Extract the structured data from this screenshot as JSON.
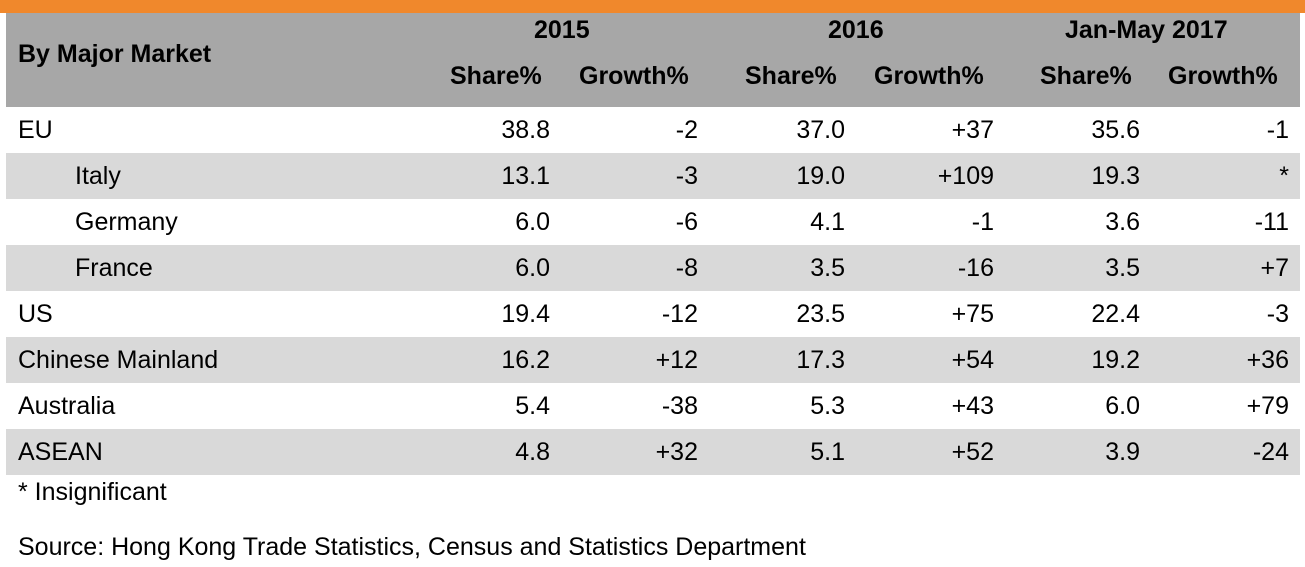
{
  "header": {
    "title": "By Major Market",
    "periods": [
      "2015",
      "2016",
      "Jan-May 2017"
    ],
    "share_label": "Share%",
    "growth_label": "Growth%"
  },
  "rows": [
    {
      "label": "EU",
      "indent": false,
      "values": [
        "38.8",
        "-2",
        "37.0",
        "+37",
        "35.6",
        "-1"
      ]
    },
    {
      "label": "Italy",
      "indent": true,
      "values": [
        "13.1",
        "-3",
        "19.0",
        "+109",
        "19.3",
        "*"
      ]
    },
    {
      "label": "Germany",
      "indent": true,
      "values": [
        "6.0",
        "-6",
        "4.1",
        "-1",
        "3.6",
        "-11"
      ]
    },
    {
      "label": "France",
      "indent": true,
      "values": [
        "6.0",
        "-8",
        "3.5",
        "-16",
        "3.5",
        "+7"
      ]
    },
    {
      "label": "US",
      "indent": false,
      "values": [
        "19.4",
        "-12",
        "23.5",
        "+75",
        "22.4",
        "-3"
      ]
    },
    {
      "label": "Chinese Mainland",
      "indent": false,
      "values": [
        "16.2",
        "+12",
        "17.3",
        "+54",
        "19.2",
        "+36"
      ]
    },
    {
      "label": "Australia",
      "indent": false,
      "values": [
        "5.4",
        "-38",
        "5.3",
        "+43",
        "6.0",
        "+79"
      ]
    },
    {
      "label": "ASEAN",
      "indent": false,
      "values": [
        "4.8",
        "+32",
        "5.1",
        "+52",
        "3.9",
        "-24"
      ]
    }
  ],
  "footnote": "* Insignificant",
  "source": "Source: Hong Kong Trade Statistics, Census and Statistics Department",
  "colors": {
    "accent": "#f0882c",
    "header_bg": "#a7a7a7",
    "row_shade": "#d9d9d9"
  }
}
